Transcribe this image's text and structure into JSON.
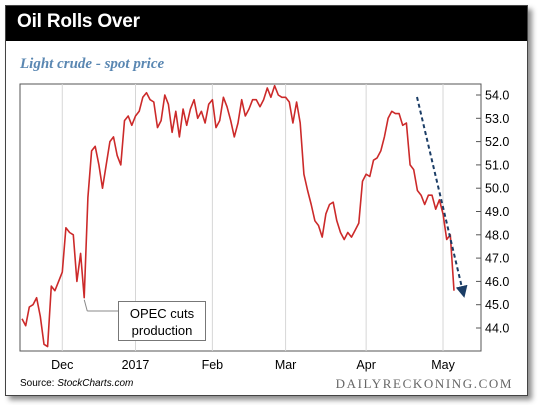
{
  "title": "Oil Rolls Over",
  "subtitle": "Light crude - spot price",
  "source_label": "Source: ",
  "source_name": "StockCharts.com",
  "brand": "DAILYRECKONING.COM",
  "annotation": {
    "line1": "OPEC cuts",
    "line2": "production"
  },
  "colors": {
    "line": "#cc2a2a",
    "trend_arrow": "#1b3d66",
    "title_bg": "#000000",
    "subtitle": "#5a87b2"
  },
  "chart_data": {
    "type": "line",
    "title": "Light crude - spot price",
    "xlabel": "",
    "ylabel": "",
    "ylim": [
      43.5,
      54.2
    ],
    "yticks": [
      44.0,
      45.0,
      46.0,
      47.0,
      48.0,
      49.0,
      50.0,
      51.0,
      52.0,
      53.0,
      54.0
    ],
    "ytick_labels": [
      "44.0",
      "45.0",
      "46.0",
      "47.0",
      "48.0",
      "49.0",
      "50.0",
      "51.0",
      "52.0",
      "53.0",
      "54.0"
    ],
    "x_tick_labels": [
      {
        "label": "Dec",
        "index": 11
      },
      {
        "label": "2017",
        "index": 31
      },
      {
        "label": "Feb",
        "index": 52
      },
      {
        "label": "Mar",
        "index": 72
      },
      {
        "label": "Apr",
        "index": 94
      },
      {
        "label": "May",
        "index": 115
      }
    ],
    "grid": "vertical",
    "series": [
      {
        "values": [
          44.4,
          44.1,
          44.9,
          45.0,
          45.3,
          44.5,
          43.3,
          43.2,
          45.8,
          45.6,
          46.0,
          46.4,
          48.3,
          48.1,
          48.0,
          46.0,
          47.2,
          45.3,
          49.6,
          51.6,
          51.8,
          51.0,
          50.0,
          51.0,
          52.0,
          52.2,
          51.4,
          51.0,
          52.9,
          53.1,
          52.7,
          53.1,
          53.3,
          53.9,
          54.1,
          53.8,
          53.7,
          52.6,
          52.9,
          54.0,
          53.6,
          52.4,
          53.3,
          52.2,
          53.4,
          52.7,
          53.4,
          53.8,
          53.0,
          53.3,
          52.8,
          53.6,
          53.8,
          52.6,
          52.9,
          53.9,
          53.5,
          52.9,
          52.2,
          52.8,
          53.8,
          53.1,
          53.4,
          53.8,
          53.8,
          53.5,
          53.8,
          54.3,
          53.9,
          54.4,
          54.0,
          53.9,
          53.9,
          53.7,
          52.8,
          53.7,
          52.8,
          50.6,
          49.9,
          49.3,
          48.6,
          48.4,
          47.9,
          48.9,
          49.3,
          49.4,
          48.6,
          48.1,
          47.8,
          48.1,
          47.9,
          48.2,
          48.5,
          50.3,
          50.6,
          50.5,
          51.2,
          51.3,
          51.6,
          52.2,
          53.0,
          53.3,
          53.2,
          53.2,
          52.7,
          52.8,
          51.0,
          50.8,
          49.9,
          49.7,
          49.3,
          49.7,
          49.7,
          49.1,
          49.5,
          48.9,
          47.8,
          48.0,
          45.6
        ]
      }
    ]
  }
}
